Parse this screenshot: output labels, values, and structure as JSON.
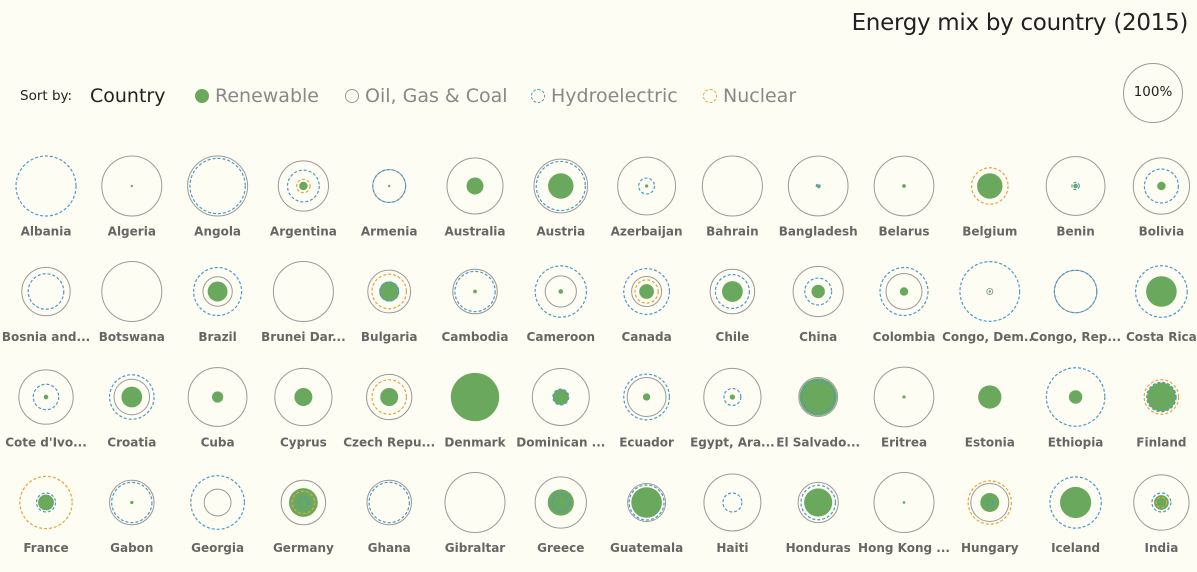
{
  "title": "Energy mix by country (2015)",
  "sort": {
    "label": "Sort by:",
    "options": [
      "Country",
      "Renewable",
      "Oil, Gas & Coal",
      "Hydroelectric",
      "Nuclear"
    ],
    "active": "Country"
  },
  "scale_label": "100%",
  "colors": {
    "renewable": "#6aa95d",
    "fossil": "#9a9a9a",
    "hydro": "#4a9ac6",
    "nuclear": "#e8a33a",
    "label": "#666666",
    "background": "#fefdf3"
  },
  "chart_data": {
    "type": "proportional-circles",
    "title": "Energy mix by country (2015)",
    "unit": "% of energy",
    "series": [
      "renewable",
      "fossil",
      "hydro",
      "nuclear"
    ],
    "countries": [
      {
        "name": "Albania",
        "renewable": 0,
        "fossil": 0,
        "hydro": 100,
        "nuclear": 0
      },
      {
        "name": "Algeria",
        "renewable": 0.1,
        "fossil": 100,
        "hydro": 0,
        "nuclear": 0
      },
      {
        "name": "Angola",
        "renewable": 0,
        "fossil": 100,
        "hydro": 85,
        "nuclear": 0
      },
      {
        "name": "Argentina",
        "renewable": 2,
        "fossil": 70,
        "hydro": 28,
        "nuclear": 5
      },
      {
        "name": "Armenia",
        "renewable": 0.05,
        "fossil": 30,
        "hydro": 30,
        "nuclear": 0
      },
      {
        "name": "Australia",
        "renewable": 8,
        "fossil": 87,
        "hydro": 0,
        "nuclear": 0
      },
      {
        "name": "Austria",
        "renewable": 18,
        "fossil": 80,
        "hydro": 67,
        "nuclear": 0
      },
      {
        "name": "Azerbaijan",
        "renewable": 0.3,
        "fossil": 93,
        "hydro": 7,
        "nuclear": 0
      },
      {
        "name": "Bahrain",
        "renewable": 0,
        "fossil": 100,
        "hydro": 0,
        "nuclear": 0
      },
      {
        "name": "Bangladesh",
        "renewable": 0.3,
        "fossil": 99,
        "hydro": 0.4,
        "nuclear": 0
      },
      {
        "name": "Belarus",
        "renewable": 0.4,
        "fossil": 99,
        "hydro": 0,
        "nuclear": 0
      },
      {
        "name": "Belgium",
        "renewable": 18,
        "fossil": 0,
        "hydro": 0,
        "nuclear": 37
      },
      {
        "name": "Benin",
        "renewable": 0.6,
        "fossil": 96,
        "hydro": 1.5,
        "nuclear": 0
      },
      {
        "name": "Bolivia",
        "renewable": 2,
        "fossil": 88,
        "hydro": 32,
        "nuclear": 0
      },
      {
        "name": "Bosnia and...",
        "renewable": 0,
        "fossil": 65,
        "hydro": 35,
        "nuclear": 0
      },
      {
        "name": "Botswana",
        "renewable": 0,
        "fossil": 100,
        "hydro": 0,
        "nuclear": 0
      },
      {
        "name": "Brazil",
        "renewable": 11,
        "fossil": 24,
        "hydro": 64,
        "nuclear": 0
      },
      {
        "name": "Brunei Dar...",
        "renewable": 0,
        "fossil": 100,
        "hydro": 0,
        "nuclear": 0
      },
      {
        "name": "Bulgaria",
        "renewable": 11,
        "fossil": 51,
        "hydro": 10,
        "nuclear": 33
      },
      {
        "name": "Cambodia",
        "renewable": 0.4,
        "fossil": 55,
        "hydro": 45,
        "nuclear": 0
      },
      {
        "name": "Cameroon",
        "renewable": 0.6,
        "fossil": 27,
        "hydro": 73,
        "nuclear": 0
      },
      {
        "name": "Canada",
        "renewable": 6,
        "fossil": 25,
        "hydro": 58,
        "nuclear": 15
      },
      {
        "name": "Chile",
        "renewable": 12,
        "fossil": 55,
        "hydro": 32,
        "nuclear": 0
      },
      {
        "name": "China",
        "renewable": 5,
        "fossil": 70,
        "hydro": 20,
        "nuclear": 0
      },
      {
        "name": "Colombia",
        "renewable": 2,
        "fossil": 36,
        "hydro": 64,
        "nuclear": 0
      },
      {
        "name": "Congo, Dem...",
        "renewable": 0.05,
        "fossil": 1,
        "hydro": 99,
        "nuclear": 0
      },
      {
        "name": "Congo, Rep...",
        "renewable": 0,
        "fossil": 50,
        "hydro": 50,
        "nuclear": 0
      },
      {
        "name": "Costa Rica",
        "renewable": 26,
        "fossil": 1,
        "hydro": 74,
        "nuclear": 0
      },
      {
        "name": "Cote d'Ivo...",
        "renewable": 0.6,
        "fossil": 82,
        "hydro": 18,
        "nuclear": 0
      },
      {
        "name": "Croatia",
        "renewable": 12,
        "fossil": 35,
        "hydro": 55,
        "nuclear": 0
      },
      {
        "name": "Cuba",
        "renewable": 3.5,
        "fossil": 96,
        "hydro": 0,
        "nuclear": 0
      },
      {
        "name": "Cyprus",
        "renewable": 9,
        "fossil": 91,
        "hydro": 0,
        "nuclear": 0
      },
      {
        "name": "Czech Repu...",
        "renewable": 9,
        "fossil": 57,
        "hydro": 0,
        "nuclear": 33
      },
      {
        "name": "Denmark",
        "renewable": 65,
        "fossil": 35,
        "hydro": 0,
        "nuclear": 0
      },
      {
        "name": "Dominican ...",
        "renewable": 7,
        "fossil": 90,
        "hydro": 7,
        "nuclear": 0
      },
      {
        "name": "Ecuador",
        "renewable": 1.5,
        "fossil": 42,
        "hydro": 58,
        "nuclear": 0
      },
      {
        "name": "Egypt, Ara...",
        "renewable": 0.8,
        "fossil": 91,
        "hydro": 8,
        "nuclear": 0
      },
      {
        "name": "El Salvado...",
        "renewable": 39,
        "fossil": 42,
        "hydro": 30,
        "nuclear": 0
      },
      {
        "name": "Eritrea",
        "renewable": 0.3,
        "fossil": 99,
        "hydro": 0,
        "nuclear": 0
      },
      {
        "name": "Estonia",
        "renewable": 15,
        "fossil": 0,
        "hydro": 0,
        "nuclear": 0
      },
      {
        "name": "Ethiopia",
        "renewable": 5,
        "fossil": 0,
        "hydro": 95,
        "nuclear": 0
      },
      {
        "name": "Finland",
        "renewable": 23,
        "fossil": 0,
        "hydro": 24,
        "nuclear": 33
      },
      {
        "name": "France",
        "renewable": 7,
        "fossil": 0,
        "hydro": 10,
        "nuclear": 76
      },
      {
        "name": "Gabon",
        "renewable": 0.3,
        "fossil": 55,
        "hydro": 45,
        "nuclear": 0
      },
      {
        "name": "Georgia",
        "renewable": 0,
        "fossil": 20,
        "hydro": 80,
        "nuclear": 0
      },
      {
        "name": "Germany",
        "renewable": 23,
        "fossil": 55,
        "hydro": 3,
        "nuclear": 14
      },
      {
        "name": "Ghana",
        "renewable": 0,
        "fossil": 55,
        "hydro": 45,
        "nuclear": 0
      },
      {
        "name": "Gibraltar",
        "renewable": 0,
        "fossil": 100,
        "hydro": 0,
        "nuclear": 0
      },
      {
        "name": "Greece",
        "renewable": 19,
        "fossil": 73,
        "hydro": 8,
        "nuclear": 0
      },
      {
        "name": "Guatemala",
        "renewable": 26,
        "fossil": 40,
        "hydro": 34,
        "nuclear": 0
      },
      {
        "name": "Haiti",
        "renewable": 0,
        "fossil": 90,
        "hydro": 10,
        "nuclear": 0
      },
      {
        "name": "Honduras",
        "renewable": 22,
        "fossil": 45,
        "hydro": 33,
        "nuclear": 0
      },
      {
        "name": "Hong Kong ...",
        "renewable": 0.2,
        "fossil": 100,
        "hydro": 0,
        "nuclear": 0
      },
      {
        "name": "Hungary",
        "renewable": 10,
        "fossil": 40,
        "hydro": 1,
        "nuclear": 52
      },
      {
        "name": "Iceland",
        "renewable": 27,
        "fossil": 0,
        "hydro": 73,
        "nuclear": 0
      },
      {
        "name": "India",
        "renewable": 6,
        "fossil": 85,
        "hydro": 10,
        "nuclear": 3
      }
    ]
  }
}
